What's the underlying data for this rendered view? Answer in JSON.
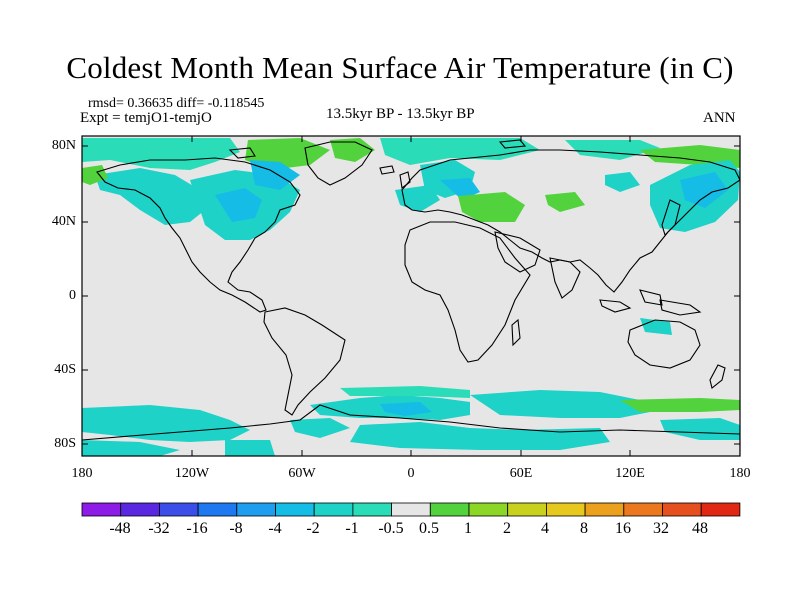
{
  "title": "Coldest Month Mean Surface Air Temperature (in C)",
  "stats": "rmsd= 0.36635 diff= -0.118545",
  "experiment": "Expt = temjO1-temjO",
  "period": "13.5kyr BP - 13.5kyr BP",
  "season": "ANN",
  "lat_labels": [
    "80N",
    "40N",
    "0",
    "40S",
    "80S"
  ],
  "lon_labels": [
    "180",
    "120W",
    "60W",
    "0",
    "60E",
    "120E",
    "180"
  ],
  "colorbar": {
    "labels": [
      "-48",
      "-32",
      "-16",
      "-8",
      "-4",
      "-2",
      "-1",
      "-0.5",
      "0.5",
      "1",
      "2",
      "4",
      "8",
      "16",
      "32",
      "48"
    ],
    "colors": [
      "#8c1ce6",
      "#5a28e0",
      "#3b4fe8",
      "#1e78f0",
      "#1f9ef0",
      "#14bce6",
      "#1ed2c8",
      "#2adcb8",
      "#e6e6e6",
      "#52d23c",
      "#8cd628",
      "#c8d21e",
      "#e6c81e",
      "#eba01e",
      "#eb781e",
      "#e6501e",
      "#e12814"
    ]
  }
}
